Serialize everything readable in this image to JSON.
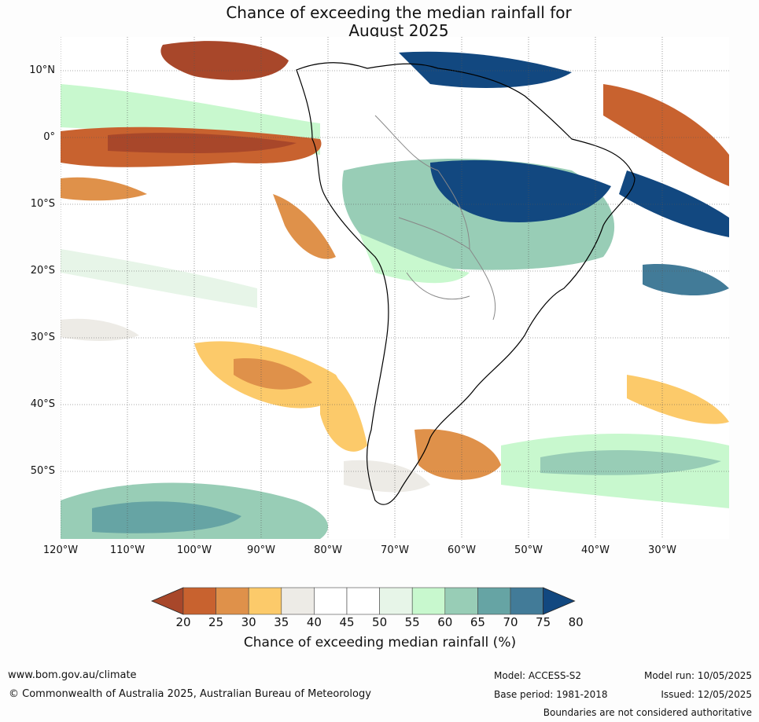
{
  "title_line1": "Chance of exceeding the median rainfall for",
  "title_line2": "August 2025",
  "lat_ticks": [
    "10°N",
    "0°",
    "10°S",
    "20°S",
    "30°S",
    "40°S",
    "50°S"
  ],
  "lon_ticks": [
    "120°W",
    "110°W",
    "100°W",
    "90°W",
    "80°W",
    "70°W",
    "60°W",
    "50°W",
    "40°W",
    "30°W"
  ],
  "colorbar": {
    "ticks": [
      "20",
      "25",
      "30",
      "35",
      "40",
      "45",
      "50",
      "55",
      "60",
      "65",
      "70",
      "75",
      "80"
    ],
    "colors": [
      "#a8472a",
      "#c8622f",
      "#df914a",
      "#fcca6a",
      "#edebe6",
      "#ffffff",
      "#ffffff",
      "#e7f5e8",
      "#c8f8ce",
      "#98cdb6",
      "#66a4a4",
      "#427b98",
      "#124880"
    ],
    "label": "Chance of exceeding median rainfall (%)"
  },
  "footer": {
    "website": "www.bom.gov.au/climate",
    "copyright": "© Commonwealth of Australia 2025, Australian Bureau of Meteorology",
    "model": "Model: ACCESS-S2",
    "base_period": "Base period: 1981-2018",
    "model_run": "Model run: 10/05/2025",
    "issued": "Issued: 12/05/2025",
    "disclaimer": "Boundaries are not considered authoritative"
  }
}
